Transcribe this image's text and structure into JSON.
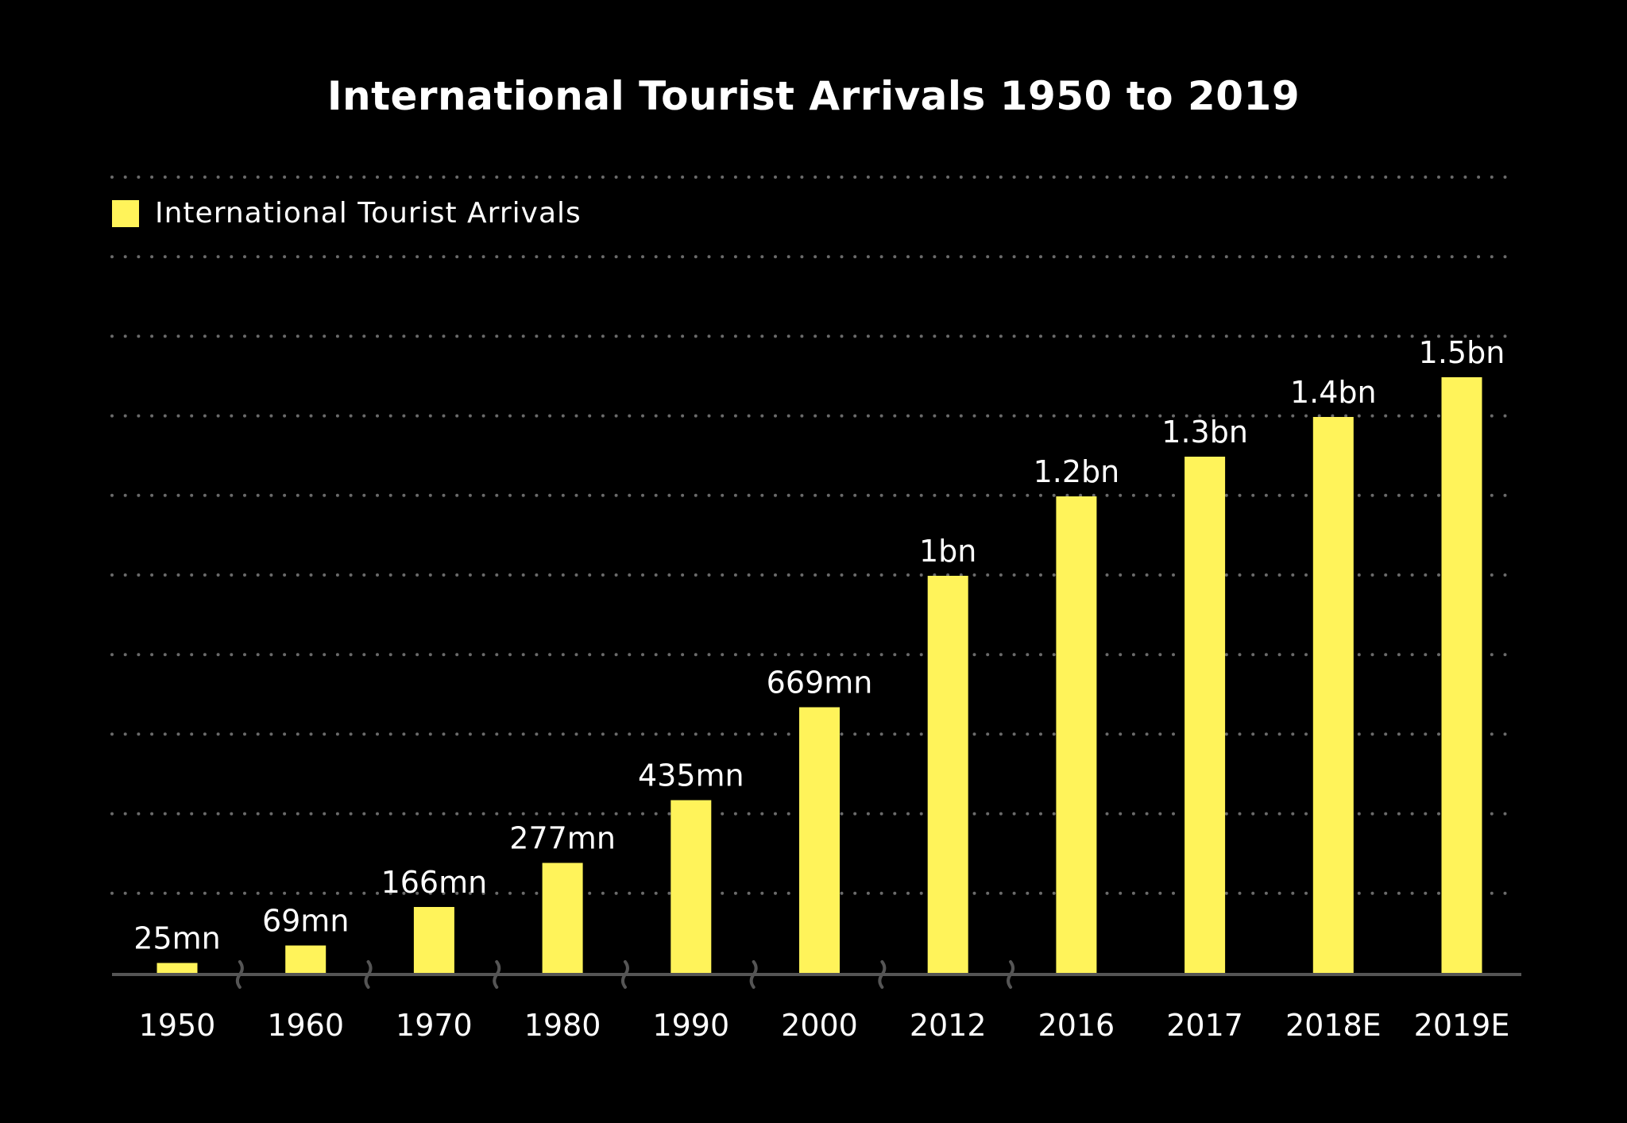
{
  "chart_data": {
    "type": "bar",
    "title": "International Tourist Arrivals 1950 to 2019",
    "legend": [
      {
        "label": "International Tourist Arrivals",
        "color": "#fff35a"
      }
    ],
    "legend_position": "top-left",
    "categories": [
      "1950",
      "1960",
      "1970",
      "1980",
      "1990",
      "2000",
      "2012",
      "2016",
      "2017",
      "2018E",
      "2019E"
    ],
    "values": [
      25,
      69,
      166,
      277,
      435,
      669,
      1000,
      1200,
      1300,
      1400,
      1500
    ],
    "value_units": "millions",
    "data_labels": [
      "25mn",
      "69mn",
      "166mn",
      "277mn",
      "435mn",
      "669mn",
      "1bn",
      "1.2bn",
      "1.3bn",
      "1.4bn",
      "1.5bn"
    ],
    "axis_breaks_after": [
      "1950",
      "1960",
      "1970",
      "1980",
      "1990",
      "2000",
      "2012"
    ],
    "xlabel": "",
    "ylabel": "",
    "ylim": [
      0,
      2000
    ],
    "grid": true,
    "colors": {
      "bar": "#fff35a",
      "grid": "#6b6b6b",
      "axis": "#555555",
      "background": "#000000",
      "text": "#ffffff"
    }
  }
}
